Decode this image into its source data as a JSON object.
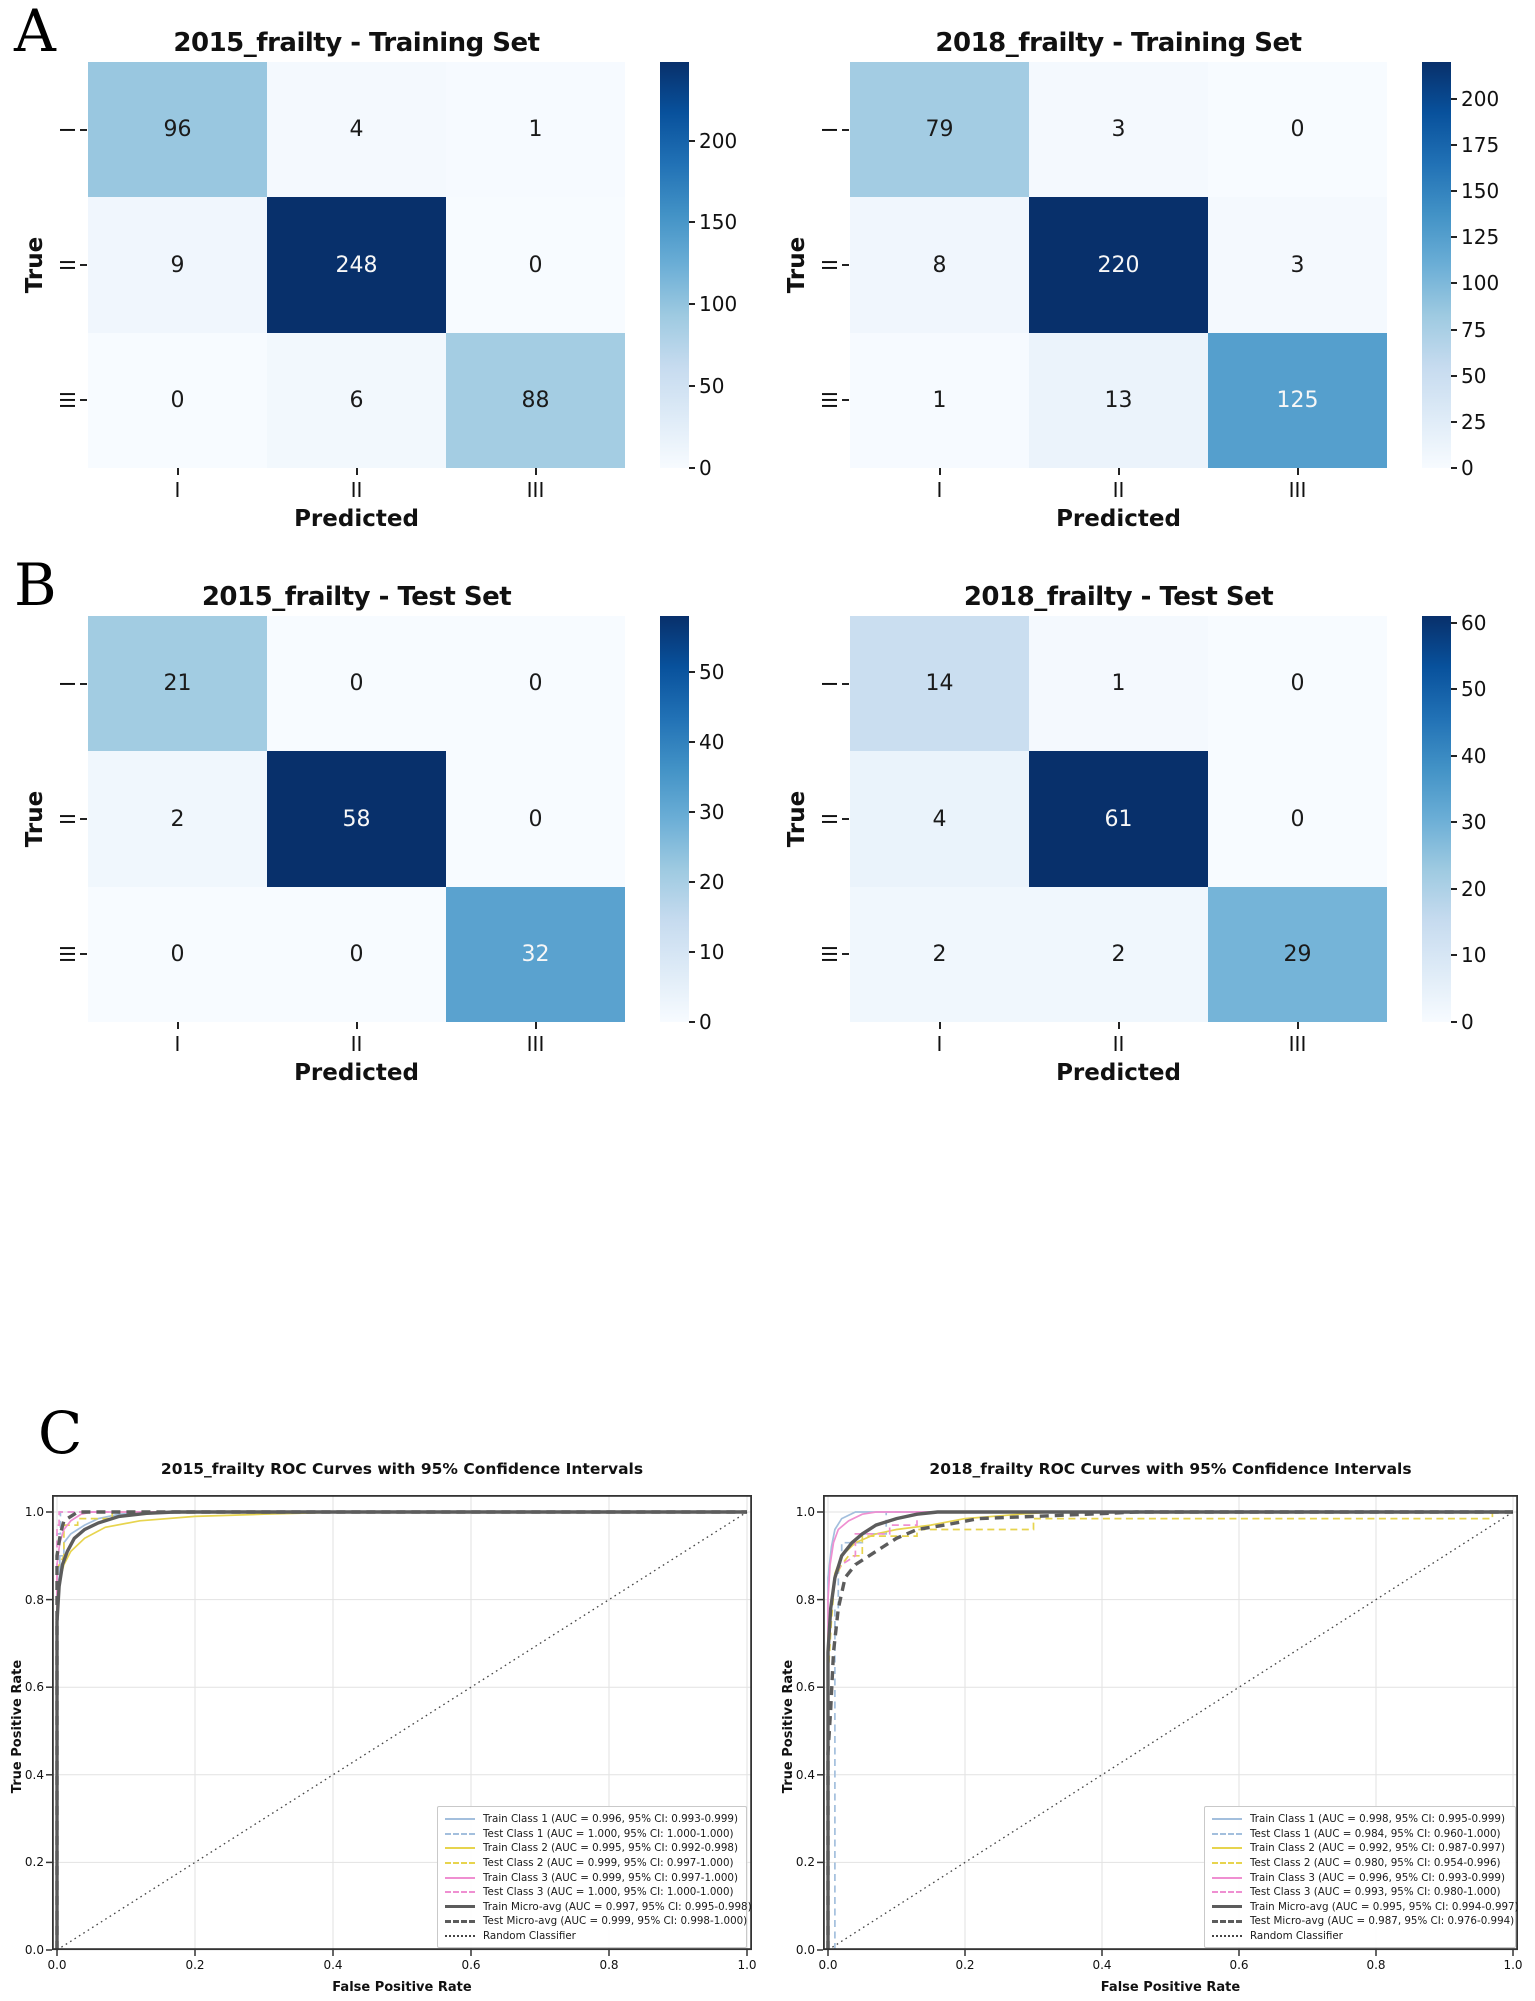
{
  "panel_labels": {
    "a": "A",
    "b": "B",
    "c": "C"
  },
  "chart_data": [
    {
      "type": "heatmap",
      "panel": "A",
      "title": "2015_frailty - Training Set",
      "xlabel": "Predicted",
      "ylabel": "True",
      "x_ticklabels": [
        "I",
        "II",
        "III"
      ],
      "y_ticklabels": [
        "I",
        "II",
        "III"
      ],
      "rows": [
        [
          96,
          4,
          1
        ],
        [
          9,
          248,
          0
        ],
        [
          0,
          6,
          88
        ]
      ],
      "vmax": 248,
      "colorbar_ticks": [
        0,
        50,
        100,
        150,
        200
      ],
      "colormap": "Blues"
    },
    {
      "type": "heatmap",
      "panel": "A",
      "title": "2018_frailty - Training Set",
      "xlabel": "Predicted",
      "ylabel": "True",
      "x_ticklabels": [
        "I",
        "II",
        "III"
      ],
      "y_ticklabels": [
        "I",
        "II",
        "III"
      ],
      "rows": [
        [
          79,
          3,
          0
        ],
        [
          8,
          220,
          3
        ],
        [
          1,
          13,
          125
        ]
      ],
      "vmax": 220,
      "colorbar_ticks": [
        0,
        25,
        50,
        75,
        100,
        125,
        150,
        175,
        200
      ],
      "colormap": "Blues"
    },
    {
      "type": "heatmap",
      "panel": "B",
      "title": "2015_frailty - Test Set",
      "xlabel": "Predicted",
      "ylabel": "True",
      "x_ticklabels": [
        "I",
        "II",
        "III"
      ],
      "y_ticklabels": [
        "I",
        "II",
        "III"
      ],
      "rows": [
        [
          21,
          0,
          0
        ],
        [
          2,
          58,
          0
        ],
        [
          0,
          0,
          32
        ]
      ],
      "vmax": 58,
      "colorbar_ticks": [
        0,
        10,
        20,
        30,
        40,
        50
      ],
      "colormap": "Blues"
    },
    {
      "type": "heatmap",
      "panel": "B",
      "title": "2018_frailty - Test Set",
      "xlabel": "Predicted",
      "ylabel": "True",
      "x_ticklabels": [
        "I",
        "II",
        "III"
      ],
      "y_ticklabels": [
        "I",
        "II",
        "III"
      ],
      "rows": [
        [
          14,
          1,
          0
        ],
        [
          4,
          61,
          0
        ],
        [
          2,
          2,
          29
        ]
      ],
      "vmax": 61,
      "colorbar_ticks": [
        0,
        10,
        20,
        30,
        40,
        50,
        60
      ],
      "colormap": "Blues"
    },
    {
      "type": "line",
      "panel": "C",
      "title": "2015_frailty ROC Curves with 95% Confidence Intervals",
      "xlabel": "False Positive Rate",
      "ylabel": "True Positive Rate",
      "xlim": [
        0,
        1
      ],
      "ylim": [
        0,
        1.04
      ],
      "x_ticklabels": [
        "0.0",
        "0.2",
        "0.4",
        "0.6",
        "0.8",
        "1.0"
      ],
      "y_ticklabels": [
        "0.0",
        "0.2",
        "0.4",
        "0.6",
        "0.8",
        "1.0"
      ],
      "grid": true,
      "legend_position": "lower right",
      "series": [
        {
          "label": "Train Class 1 (AUC = 0.996, 95% CI: 0.993-0.999)",
          "color": "#a3bfdd",
          "style": "solid",
          "width": 1.7,
          "points": [
            [
              0,
              0
            ],
            [
              0,
              0.82
            ],
            [
              0.004,
              0.86
            ],
            [
              0.004,
              0.9
            ],
            [
              0.01,
              0.9
            ],
            [
              0.01,
              0.93
            ],
            [
              0.02,
              0.95
            ],
            [
              0.04,
              0.97
            ],
            [
              0.06,
              0.985
            ],
            [
              0.09,
              0.995
            ],
            [
              0.13,
              1.0
            ],
            [
              1,
              1
            ]
          ]
        },
        {
          "label": "Test Class 1 (AUC = 1.000, 95% CI: 1.000-1.000)",
          "color": "#a3bfdd",
          "style": "dashed",
          "width": 1.7,
          "points": [
            [
              0,
              0
            ],
            [
              0,
              0.95
            ],
            [
              0.005,
              0.95
            ],
            [
              0.005,
              1.0
            ],
            [
              1,
              1
            ]
          ]
        },
        {
          "label": "Train Class 2 (AUC = 0.995, 95% CI: 0.992-0.998)",
          "color": "#e7d44e",
          "style": "solid",
          "width": 1.7,
          "points": [
            [
              0,
              0
            ],
            [
              0,
              0.8
            ],
            [
              0.005,
              0.85
            ],
            [
              0.01,
              0.88
            ],
            [
              0.02,
              0.91
            ],
            [
              0.04,
              0.94
            ],
            [
              0.07,
              0.965
            ],
            [
              0.12,
              0.98
            ],
            [
              0.2,
              0.99
            ],
            [
              0.3,
              0.995
            ],
            [
              0.42,
              1.0
            ],
            [
              1,
              1
            ]
          ]
        },
        {
          "label": "Test Class 2 (AUC = 0.999, 95% CI: 0.997-1.000)",
          "color": "#e7d44e",
          "style": "dashed",
          "width": 1.7,
          "points": [
            [
              0,
              0
            ],
            [
              0,
              0.87
            ],
            [
              0.01,
              0.9
            ],
            [
              0.01,
              0.97
            ],
            [
              0.03,
              0.97
            ],
            [
              0.03,
              0.985
            ],
            [
              0.08,
              0.985
            ],
            [
              0.08,
              1.0
            ],
            [
              1,
              1
            ]
          ]
        },
        {
          "label": "Train Class 3 (AUC = 0.999, 95% CI: 0.997-1.000)",
          "color": "#ef8fd1",
          "style": "solid",
          "width": 1.7,
          "points": [
            [
              0,
              0
            ],
            [
              0,
              0.88
            ],
            [
              0.004,
              0.93
            ],
            [
              0.01,
              0.96
            ],
            [
              0.02,
              0.98
            ],
            [
              0.035,
              0.995
            ],
            [
              0.05,
              1.0
            ],
            [
              1,
              1
            ]
          ]
        },
        {
          "label": "Test Class 3 (AUC = 1.000, 95% CI: 1.000-1.000)",
          "color": "#ef8fd1",
          "style": "dashed",
          "width": 1.7,
          "points": [
            [
              0,
              0
            ],
            [
              0,
              0.97
            ],
            [
              0.003,
              0.97
            ],
            [
              0.003,
              1.0
            ],
            [
              1,
              1
            ]
          ]
        },
        {
          "label": "Train Micro-avg (AUC = 0.997, 95% CI: 0.995-0.998)",
          "color": "#5c5c5c",
          "style": "solid",
          "width": 3.4,
          "points": [
            [
              0,
              0
            ],
            [
              0,
              0.75
            ],
            [
              0.003,
              0.83
            ],
            [
              0.008,
              0.88
            ],
            [
              0.015,
              0.91
            ],
            [
              0.025,
              0.94
            ],
            [
              0.04,
              0.96
            ],
            [
              0.06,
              0.975
            ],
            [
              0.09,
              0.99
            ],
            [
              0.13,
              0.997
            ],
            [
              0.17,
              1.0
            ],
            [
              1,
              1
            ]
          ]
        },
        {
          "label": "Test Micro-avg (AUC = 0.999, 95% CI: 0.998-1.000)",
          "color": "#5c5c5c",
          "style": "dashed",
          "width": 3.4,
          "points": [
            [
              0,
              0
            ],
            [
              0,
              0.9
            ],
            [
              0.005,
              0.95
            ],
            [
              0.01,
              0.98
            ],
            [
              0.02,
              0.99
            ],
            [
              0.03,
              1.0
            ],
            [
              1,
              1
            ]
          ]
        },
        {
          "label": "Random Classifier",
          "color": "#444444",
          "style": "dotted",
          "width": 1.3,
          "points": [
            [
              0,
              0
            ],
            [
              1,
              1
            ]
          ]
        }
      ]
    },
    {
      "type": "line",
      "panel": "C",
      "title": "2018_frailty ROC Curves with 95% Confidence Intervals",
      "xlabel": "False Positive Rate",
      "ylabel": "True Positive Rate",
      "xlim": [
        0,
        1
      ],
      "ylim": [
        0,
        1.04
      ],
      "x_ticklabels": [
        "0.0",
        "0.2",
        "0.4",
        "0.6",
        "0.8",
        "1.0"
      ],
      "y_ticklabels": [
        "0.0",
        "0.2",
        "0.4",
        "0.6",
        "0.8",
        "1.0"
      ],
      "grid": true,
      "legend_position": "lower right",
      "series": [
        {
          "label": "Train Class 1 (AUC = 0.998, 95% CI: 0.995-0.999)",
          "color": "#a3bfdd",
          "style": "solid",
          "width": 1.7,
          "points": [
            [
              0,
              0
            ],
            [
              0,
              0.85
            ],
            [
              0.005,
              0.92
            ],
            [
              0.01,
              0.96
            ],
            [
              0.02,
              0.985
            ],
            [
              0.04,
              1.0
            ],
            [
              1,
              1
            ]
          ]
        },
        {
          "label": "Test Class 1 (AUC = 0.984, 95% CI: 0.960-1.000)",
          "color": "#a3bfdd",
          "style": "dashed",
          "width": 1.7,
          "points": [
            [
              0.01,
              0
            ],
            [
              0.01,
              0.55
            ],
            [
              0.01,
              0.78
            ],
            [
              0.015,
              0.78
            ],
            [
              0.015,
              0.86
            ],
            [
              0.02,
              0.9
            ],
            [
              0.02,
              0.93
            ],
            [
              0.05,
              0.93
            ],
            [
              0.05,
              0.95
            ],
            [
              0.085,
              0.95
            ],
            [
              0.085,
              1.0
            ],
            [
              1,
              1
            ]
          ]
        },
        {
          "label": "Train Class 2 (AUC = 0.992, 95% CI: 0.987-0.997)",
          "color": "#e7d44e",
          "style": "solid",
          "width": 1.7,
          "points": [
            [
              0,
              0
            ],
            [
              0,
              0.72
            ],
            [
              0.005,
              0.8
            ],
            [
              0.01,
              0.86
            ],
            [
              0.02,
              0.9
            ],
            [
              0.04,
              0.93
            ],
            [
              0.07,
              0.95
            ],
            [
              0.1,
              0.96
            ],
            [
              0.15,
              0.97
            ],
            [
              0.2,
              0.985
            ],
            [
              0.28,
              0.995
            ],
            [
              0.33,
              1.0
            ],
            [
              1,
              1
            ]
          ]
        },
        {
          "label": "Test Class 2 (AUC = 0.980, 95% CI: 0.954-0.996)",
          "color": "#e7d44e",
          "style": "dashed",
          "width": 1.7,
          "points": [
            [
              0,
              0
            ],
            [
              0,
              0.62
            ],
            [
              0.005,
              0.75
            ],
            [
              0.01,
              0.85
            ],
            [
              0.02,
              0.88
            ],
            [
              0.03,
              0.9
            ],
            [
              0.05,
              0.9
            ],
            [
              0.05,
              0.945
            ],
            [
              0.13,
              0.945
            ],
            [
              0.13,
              0.96
            ],
            [
              0.3,
              0.96
            ],
            [
              0.3,
              0.985
            ],
            [
              0.56,
              0.985
            ],
            [
              0.97,
              0.985
            ],
            [
              0.97,
              1.0
            ],
            [
              1,
              1
            ]
          ]
        },
        {
          "label": "Train Class 3 (AUC = 0.996, 95% CI: 0.993-0.999)",
          "color": "#ef8fd1",
          "style": "solid",
          "width": 1.7,
          "points": [
            [
              0,
              0
            ],
            [
              0,
              0.8
            ],
            [
              0.003,
              0.88
            ],
            [
              0.008,
              0.93
            ],
            [
              0.015,
              0.96
            ],
            [
              0.03,
              0.98
            ],
            [
              0.05,
              0.995
            ],
            [
              0.07,
              1.0
            ],
            [
              1,
              1
            ]
          ]
        },
        {
          "label": "Test Class 3 (AUC = 0.993, 95% CI: 0.980-1.000)",
          "color": "#ef8fd1",
          "style": "dashed",
          "width": 1.7,
          "points": [
            [
              0,
              0
            ],
            [
              0,
              0.7
            ],
            [
              0.005,
              0.78
            ],
            [
              0.01,
              0.86
            ],
            [
              0.02,
              0.88
            ],
            [
              0.04,
              0.9
            ],
            [
              0.04,
              0.95
            ],
            [
              0.09,
              0.95
            ],
            [
              0.09,
              0.97
            ],
            [
              0.13,
              0.97
            ],
            [
              0.13,
              1.0
            ],
            [
              1,
              1
            ]
          ]
        },
        {
          "label": "Train Micro-avg (AUC = 0.995, 95% CI: 0.994-0.997)",
          "color": "#5c5c5c",
          "style": "solid",
          "width": 3.4,
          "points": [
            [
              0,
              0
            ],
            [
              0,
              0.68
            ],
            [
              0.004,
              0.78
            ],
            [
              0.01,
              0.85
            ],
            [
              0.02,
              0.9
            ],
            [
              0.035,
              0.93
            ],
            [
              0.05,
              0.95
            ],
            [
              0.07,
              0.97
            ],
            [
              0.1,
              0.985
            ],
            [
              0.13,
              0.995
            ],
            [
              0.16,
              1.0
            ],
            [
              1,
              1
            ]
          ]
        },
        {
          "label": "Test Micro-avg (AUC = 0.987, 95% CI: 0.976-0.994)",
          "color": "#5c5c5c",
          "style": "dashed",
          "width": 3.4,
          "points": [
            [
              0,
              0
            ],
            [
              0,
              0.45
            ],
            [
              0.004,
              0.55
            ],
            [
              0.008,
              0.68
            ],
            [
              0.015,
              0.78
            ],
            [
              0.025,
              0.85
            ],
            [
              0.04,
              0.88
            ],
            [
              0.06,
              0.9
            ],
            [
              0.08,
              0.92
            ],
            [
              0.1,
              0.94
            ],
            [
              0.13,
              0.96
            ],
            [
              0.17,
              0.97
            ],
            [
              0.22,
              0.985
            ],
            [
              0.3,
              0.99
            ],
            [
              0.38,
              0.995
            ],
            [
              0.45,
              1.0
            ],
            [
              1,
              1
            ]
          ]
        },
        {
          "label": "Random Classifier",
          "color": "#444444",
          "style": "dotted",
          "width": 1.3,
          "points": [
            [
              0,
              0
            ],
            [
              1,
              1
            ]
          ]
        }
      ]
    }
  ]
}
